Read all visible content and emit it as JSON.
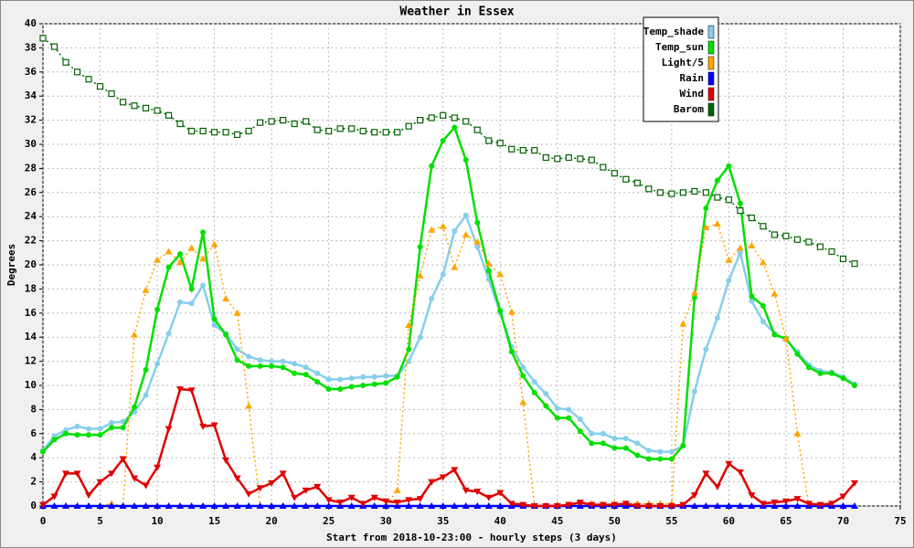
{
  "chart_data": {
    "type": "line",
    "title": "Weather in Essex",
    "x_label": "Start from 2018-10-23:00 - hourly steps (3 days)",
    "y_label": "Degrees",
    "xlim": [
      0,
      75
    ],
    "xticks": [
      0,
      5,
      10,
      15,
      20,
      25,
      30,
      35,
      40,
      45,
      50,
      55,
      60,
      65,
      70,
      75
    ],
    "ylim": [
      0,
      40
    ],
    "yticks": [
      0,
      2,
      4,
      6,
      8,
      10,
      12,
      14,
      16,
      18,
      20,
      22,
      24,
      26,
      28,
      30,
      32,
      34,
      36,
      38,
      40
    ],
    "grid": true,
    "legend": "top-right",
    "x": [
      0,
      1,
      2,
      3,
      4,
      5,
      6,
      7,
      8,
      9,
      10,
      11,
      12,
      13,
      14,
      15,
      16,
      17,
      18,
      19,
      20,
      21,
      22,
      23,
      24,
      25,
      26,
      27,
      28,
      29,
      30,
      31,
      32,
      33,
      34,
      35,
      36,
      37,
      38,
      39,
      40,
      41,
      42,
      43,
      44,
      45,
      46,
      47,
      48,
      49,
      50,
      51,
      52,
      53,
      54,
      55,
      56,
      57,
      58,
      59,
      60,
      61,
      62,
      63,
      64,
      65,
      66,
      67,
      68,
      69,
      70,
      71
    ],
    "series": [
      {
        "name": "Temp_shade",
        "color": "#87ceeb",
        "marker": "circle",
        "dash": "solid",
        "values": [
          4.6,
          5.8,
          6.3,
          6.6,
          6.4,
          6.4,
          6.9,
          7.0,
          7.8,
          9.2,
          11.8,
          14.3,
          16.9,
          16.8,
          18.3,
          15.0,
          14.3,
          13.0,
          12.4,
          12.1,
          12.0,
          12.0,
          11.8,
          11.5,
          11.0,
          10.5,
          10.5,
          10.6,
          10.7,
          10.7,
          10.8,
          10.8,
          12.0,
          14.0,
          17.2,
          19.2,
          22.8,
          24.1,
          21.5,
          18.8,
          16.0,
          13.2,
          11.5,
          10.3,
          9.3,
          8.1,
          8.0,
          7.2,
          6.0,
          6.0,
          5.6,
          5.6,
          5.2,
          4.6,
          4.5,
          4.5,
          5.0,
          9.5,
          13.0,
          15.6,
          18.7,
          21.0,
          17.0,
          15.3,
          14.3,
          13.8,
          12.8,
          11.7,
          11.2,
          11.1,
          10.7,
          10.1
        ]
      },
      {
        "name": "Temp_sun",
        "color": "#00e000",
        "marker": "circle",
        "dash": "solid",
        "values": [
          4.5,
          5.5,
          6.0,
          5.9,
          5.9,
          5.9,
          6.5,
          6.5,
          8.2,
          11.3,
          16.3,
          19.8,
          20.9,
          18.0,
          22.7,
          15.5,
          14.2,
          12.1,
          11.6,
          11.6,
          11.6,
          11.5,
          11.0,
          10.9,
          10.3,
          9.7,
          9.7,
          9.9,
          10.0,
          10.1,
          10.2,
          10.7,
          13.0,
          21.5,
          28.2,
          30.3,
          31.4,
          28.7,
          23.5,
          19.5,
          16.2,
          12.8,
          10.8,
          9.4,
          8.3,
          7.3,
          7.3,
          6.2,
          5.2,
          5.2,
          4.8,
          4.8,
          4.2,
          3.9,
          3.9,
          3.9,
          5.0,
          17.3,
          24.7,
          27.0,
          28.2,
          25.1,
          17.4,
          16.6,
          14.2,
          13.9,
          12.6,
          11.5,
          11.0,
          11.0,
          10.6,
          10.0
        ]
      },
      {
        "name": "Light/5",
        "color": "#ffa500",
        "marker": "triangle-up",
        "dash": "dotted",
        "values": [
          0,
          0,
          0,
          0,
          0,
          0,
          0.2,
          0,
          14.2,
          17.9,
          20.4,
          21.1,
          20.2,
          21.4,
          20.5,
          21.7,
          17.2,
          16.0,
          8.3,
          0,
          0,
          0,
          0,
          0,
          0,
          0,
          0,
          0,
          0,
          0,
          0,
          1.3,
          15.0,
          19.1,
          22.9,
          23.2,
          19.8,
          22.5,
          21.9,
          20.1,
          19.2,
          16.1,
          8.6,
          0,
          0,
          0.1,
          0.1,
          0.2,
          0.2,
          0.1,
          0.2,
          0.2,
          0.2,
          0.2,
          0.2,
          0.2,
          15.1,
          17.7,
          23.1,
          23.4,
          20.4,
          21.4,
          21.6,
          20.2,
          17.6,
          13.9,
          6.0,
          0,
          0,
          0,
          0,
          0
        ]
      },
      {
        "name": "Rain",
        "color": "#0000ff",
        "marker": "triangle-up",
        "dash": "solid",
        "values": [
          0,
          0,
          0,
          0,
          0,
          0,
          0,
          0,
          0,
          0,
          0,
          0,
          0,
          0,
          0,
          0,
          0,
          0,
          0,
          0,
          0,
          0,
          0,
          0,
          0,
          0,
          0,
          0,
          0,
          0,
          0,
          0,
          0,
          0,
          0,
          0,
          0,
          0,
          0,
          0,
          0,
          0,
          0,
          0,
          0,
          0,
          0,
          0,
          0,
          0,
          0,
          0,
          0,
          0,
          0,
          0,
          0,
          0,
          0,
          0,
          0,
          0,
          0,
          0,
          0,
          0,
          0,
          0,
          0,
          0,
          0,
          0
        ]
      },
      {
        "name": "Wind",
        "color": "#e00000",
        "marker": "triangle-down",
        "dash": "solid",
        "values": [
          0.1,
          0.8,
          2.7,
          2.7,
          0.9,
          2.0,
          2.7,
          3.9,
          2.3,
          1.7,
          3.2,
          6.4,
          9.7,
          9.6,
          6.6,
          6.7,
          3.8,
          2.3,
          1.0,
          1.5,
          1.9,
          2.7,
          0.7,
          1.3,
          1.6,
          0.5,
          0.3,
          0.7,
          0.2,
          0.7,
          0.4,
          0.3,
          0.5,
          0.6,
          2.0,
          2.4,
          3.0,
          1.3,
          1.2,
          0.7,
          1.1,
          0.2,
          0.1,
          0,
          0,
          0,
          0.1,
          0.3,
          0.1,
          0.1,
          0.1,
          0.2,
          0,
          0,
          0,
          0,
          0.1,
          0.9,
          2.7,
          1.6,
          3.5,
          2.8,
          0.9,
          0.2,
          0.3,
          0.4,
          0.6,
          0.2,
          0.1,
          0.2,
          0.8,
          1.9
        ]
      },
      {
        "name": "Barom",
        "color": "#006400",
        "marker": "square-open",
        "dash": "dotted",
        "values": [
          38.8,
          38.1,
          36.8,
          36.0,
          35.4,
          34.8,
          34.2,
          33.5,
          33.2,
          33.0,
          32.8,
          32.4,
          31.7,
          31.1,
          31.1,
          31.0,
          31.0,
          30.8,
          31.1,
          31.8,
          31.9,
          32.0,
          31.7,
          31.9,
          31.2,
          31.1,
          31.3,
          31.3,
          31.1,
          31.0,
          31.0,
          31.0,
          31.5,
          32.0,
          32.2,
          32.4,
          32.2,
          31.9,
          31.2,
          30.3,
          30.1,
          29.6,
          29.5,
          29.5,
          28.9,
          28.8,
          28.9,
          28.8,
          28.7,
          28.1,
          27.6,
          27.1,
          26.8,
          26.3,
          26.0,
          25.9,
          26.0,
          26.1,
          26.0,
          25.6,
          25.4,
          24.5,
          23.9,
          23.2,
          22.5,
          22.4,
          22.1,
          21.9,
          21.5,
          21.1,
          20.5,
          20.1
        ]
      }
    ]
  }
}
